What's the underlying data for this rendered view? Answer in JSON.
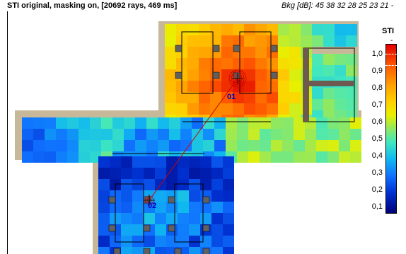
{
  "header": {
    "title": "STI original, masking on,  [20692 rays, 469 ms]",
    "background_noise": "Bkg [dB]: 45 38 32 28 25 23 21 -"
  },
  "legend": {
    "title": "STI",
    "subtitle": "-",
    "ticks": [
      "1,0",
      "0,9",
      "0,8",
      "0,7",
      "0,6",
      "0,5",
      "0,4",
      "0,3",
      "0,2",
      "0,1"
    ]
  },
  "markers": {
    "source_1": "01",
    "source_2": "02"
  },
  "colors": {
    "wall": "#c8b89a",
    "furniture_dark": "#606060",
    "ray_line": "#d00000",
    "marker_label": "#0000c0"
  }
}
